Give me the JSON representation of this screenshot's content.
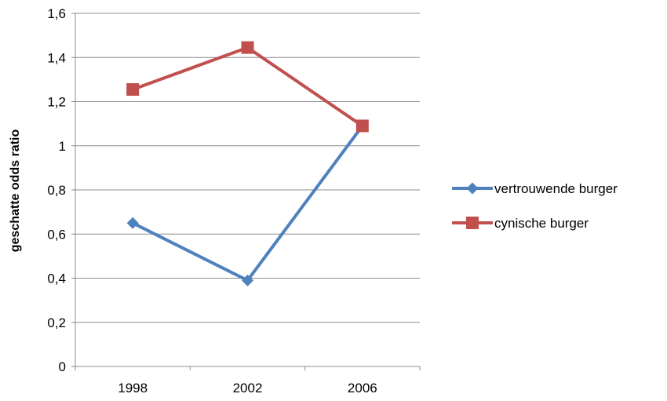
{
  "chart_data": {
    "type": "line",
    "title": "",
    "xlabel": "",
    "ylabel": "geschatte odds ratio",
    "categories": [
      "1998",
      "2002",
      "2006"
    ],
    "ylim": [
      0,
      1.6
    ],
    "yticks": [
      "0",
      "0,2",
      "0,4",
      "0,6",
      "0,8",
      "1",
      "1,2",
      "1,4",
      "1,6"
    ],
    "grid": true,
    "legend_position": "right",
    "series": [
      {
        "name": "vertrouwende burger",
        "values": [
          0.65,
          0.39,
          1.09
        ],
        "color": "#4F81BD",
        "marker": "diamond"
      },
      {
        "name": "cynische burger",
        "values": [
          1.255,
          1.445,
          1.09
        ],
        "color": "#C0504D",
        "marker": "square"
      }
    ]
  }
}
